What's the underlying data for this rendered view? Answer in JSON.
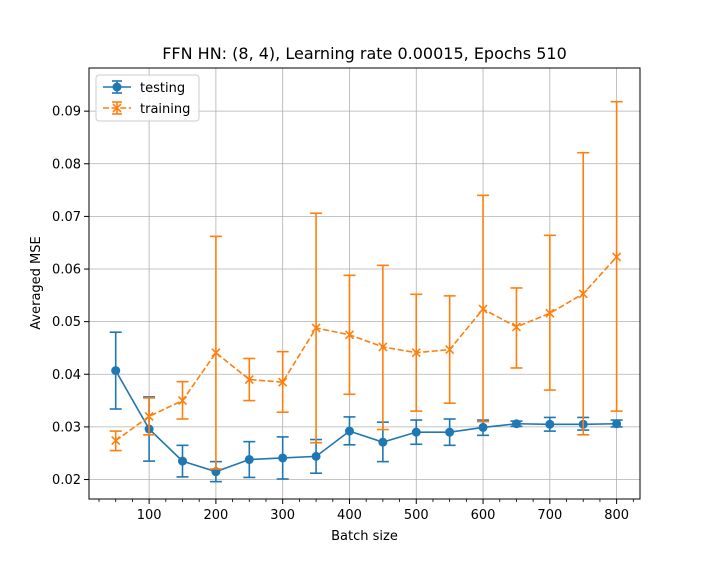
{
  "chart_data": {
    "type": "line",
    "title": "FFN HN: (8, 4), Learning rate 0.00015, Epochs 510",
    "xlabel": "Batch size",
    "ylabel": "Averaged MSE",
    "xlim": [
      10,
      835
    ],
    "ylim": [
      0.0163,
      0.0982
    ],
    "xticks": [
      100,
      200,
      300,
      400,
      500,
      600,
      700,
      800
    ],
    "xtick_labels": [
      "100",
      "200",
      "300",
      "400",
      "500",
      "600",
      "700",
      "800"
    ],
    "yticks": [
      0.02,
      0.03,
      0.04,
      0.05,
      0.06,
      0.07,
      0.08,
      0.09
    ],
    "ytick_labels": [
      "0.02",
      "0.03",
      "0.04",
      "0.05",
      "0.06",
      "0.07",
      "0.08",
      "0.09"
    ],
    "grid": true,
    "legend_position": "upper-left",
    "x": [
      50,
      100,
      150,
      200,
      250,
      300,
      350,
      400,
      450,
      500,
      550,
      600,
      650,
      700,
      750,
      800
    ],
    "series": [
      {
        "name": "testing",
        "color": "#1f77b4",
        "marker": "circle",
        "linestyle": "solid",
        "values": [
          0.0407,
          0.0296,
          0.0235,
          0.0215,
          0.0238,
          0.0241,
          0.0244,
          0.0292,
          0.0271,
          0.029,
          0.029,
          0.0299,
          0.0306,
          0.0305,
          0.0305,
          0.0306
        ],
        "err_low": [
          0.0334,
          0.0235,
          0.0205,
          0.0196,
          0.0204,
          0.0201,
          0.0212,
          0.0266,
          0.0234,
          0.0267,
          0.0265,
          0.0284,
          0.0301,
          0.0292,
          0.0294,
          0.03
        ],
        "err_high": [
          0.048,
          0.0357,
          0.0265,
          0.0234,
          0.0272,
          0.0281,
          0.0276,
          0.0319,
          0.0309,
          0.0313,
          0.0315,
          0.0313,
          0.0311,
          0.0318,
          0.0318,
          0.0313
        ]
      },
      {
        "name": "training",
        "color": "#ff7f0e",
        "marker": "x",
        "linestyle": "dashed",
        "values": [
          0.0274,
          0.032,
          0.035,
          0.0441,
          0.039,
          0.0385,
          0.0488,
          0.0475,
          0.0452,
          0.0441,
          0.0447,
          0.0524,
          0.049,
          0.0516,
          0.0553,
          0.0623
        ],
        "err_low": [
          0.0255,
          0.0285,
          0.0315,
          0.022,
          0.035,
          0.0328,
          0.027,
          0.0362,
          0.0295,
          0.033,
          0.0345,
          0.031,
          0.0412,
          0.037,
          0.0285,
          0.033
        ],
        "err_high": [
          0.0292,
          0.0355,
          0.0386,
          0.0662,
          0.043,
          0.0443,
          0.0706,
          0.0588,
          0.0607,
          0.0552,
          0.0549,
          0.074,
          0.0564,
          0.0664,
          0.0821,
          0.0918
        ]
      }
    ]
  }
}
